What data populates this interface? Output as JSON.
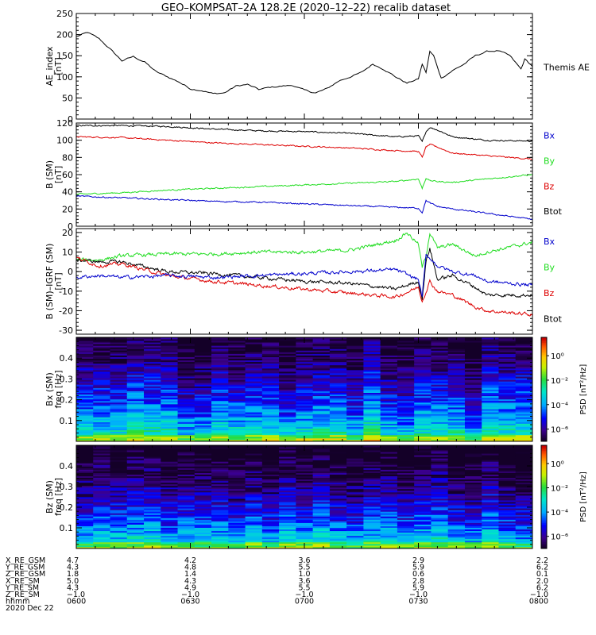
{
  "title": "GEO–KOMPSAT–2A 128.2E (2020–12–22) recalib dataset",
  "colors": {
    "black": "#000000",
    "red": "#dd0000",
    "green": "#22dd22",
    "blue": "#0000cc"
  },
  "chart_data": [
    {
      "type": "line",
      "id": "ae",
      "ylabel_lines": [
        "AE_index",
        "[nT]"
      ],
      "ylim": [
        0,
        250
      ],
      "yticks": [
        0,
        50,
        100,
        150,
        200,
        250
      ],
      "xlim_minutes": [
        0,
        120
      ],
      "legend": [
        {
          "label": "Themis AE",
          "color": "#000000"
        }
      ],
      "series": [
        {
          "name": "Themis AE",
          "color": "#000000",
          "x": [
            0,
            3,
            6,
            9,
            12,
            15,
            18,
            21,
            24,
            27,
            30,
            33,
            36,
            39,
            42,
            45,
            48,
            51,
            54,
            57,
            60,
            63,
            66,
            69,
            72,
            75,
            78,
            81,
            84,
            87,
            90,
            91,
            92,
            93,
            94,
            96,
            99,
            102,
            105,
            108,
            111,
            114,
            117,
            118,
            120
          ],
          "y": [
            195,
            205,
            190,
            165,
            138,
            148,
            135,
            112,
            100,
            88,
            72,
            68,
            60,
            62,
            78,
            82,
            70,
            75,
            78,
            80,
            68,
            62,
            72,
            90,
            100,
            110,
            130,
            118,
            100,
            85,
            95,
            130,
            110,
            160,
            150,
            97,
            115,
            130,
            150,
            160,
            162,
            150,
            118,
            142,
            125
          ]
        }
      ]
    },
    {
      "type": "line",
      "id": "b_sm",
      "ylabel_lines": [
        "B (SM)",
        "[nT]"
      ],
      "ylim": [
        0,
        120
      ],
      "yticks": [
        0,
        20,
        40,
        60,
        80,
        100,
        120
      ],
      "xlim_minutes": [
        0,
        120
      ],
      "legend": [
        {
          "label": "Bx",
          "color": "#0000cc"
        },
        {
          "label": "By",
          "color": "#22dd22"
        },
        {
          "label": "Bz",
          "color": "#dd0000"
        },
        {
          "label": "Btot",
          "color": "#000000"
        }
      ],
      "series": [
        {
          "name": "Btot",
          "color": "#000000",
          "x": [
            0,
            12,
            24,
            36,
            48,
            60,
            72,
            84,
            90,
            91,
            92,
            93,
            95,
            99,
            108,
            120
          ],
          "y": [
            117,
            117,
            116,
            113,
            111,
            110,
            108,
            104,
            105,
            98,
            110,
            115,
            112,
            104,
            100,
            99
          ]
        },
        {
          "name": "Bz",
          "color": "#dd0000",
          "x": [
            0,
            12,
            24,
            36,
            48,
            60,
            72,
            84,
            90,
            91,
            92,
            93,
            95,
            99,
            108,
            120
          ],
          "y": [
            104,
            103,
            100,
            97,
            95,
            93,
            91,
            88,
            87,
            80,
            92,
            95,
            92,
            85,
            82,
            78
          ]
        },
        {
          "name": "By",
          "color": "#22dd22",
          "x": [
            0,
            12,
            24,
            36,
            48,
            60,
            72,
            84,
            90,
            91,
            92,
            93,
            95,
            99,
            108,
            120
          ],
          "y": [
            37,
            39,
            42,
            44,
            46,
            48,
            50,
            52,
            55,
            44,
            56,
            53,
            52,
            51,
            55,
            60
          ]
        },
        {
          "name": "Bx",
          "color": "#0000cc",
          "x": [
            0,
            12,
            24,
            36,
            48,
            60,
            72,
            84,
            90,
            91,
            92,
            93,
            95,
            99,
            108,
            120
          ],
          "y": [
            35,
            33,
            31,
            29,
            28,
            26,
            24,
            22,
            21,
            16,
            30,
            27,
            23,
            20,
            15,
            8
          ]
        }
      ]
    },
    {
      "type": "line",
      "id": "b_igrf",
      "ylabel_lines": [
        "B (SM)–IGRF (SM)",
        "[nT]"
      ],
      "ylim": [
        -32,
        22
      ],
      "yticks": [
        -30,
        -20,
        -10,
        0,
        10,
        20
      ],
      "xlim_minutes": [
        0,
        120
      ],
      "legend": [
        {
          "label": "Bx",
          "color": "#0000cc"
        },
        {
          "label": "By",
          "color": "#22dd22"
        },
        {
          "label": "Bz",
          "color": "#dd0000"
        },
        {
          "label": "Btot",
          "color": "#000000"
        }
      ],
      "series": [
        {
          "name": "By",
          "color": "#22dd22",
          "x": [
            0,
            6,
            12,
            24,
            36,
            48,
            60,
            72,
            84,
            87,
            90,
            91,
            92,
            93,
            95,
            99,
            105,
            108,
            120
          ],
          "y": [
            6,
            6,
            8,
            9,
            9,
            10,
            10,
            11,
            16,
            20,
            14,
            2,
            8,
            20,
            12,
            14,
            8,
            10,
            15
          ]
        },
        {
          "name": "Btot",
          "color": "#000000",
          "x": [
            0,
            6,
            12,
            24,
            36,
            48,
            60,
            72,
            84,
            90,
            91,
            92,
            93,
            95,
            99,
            105,
            108,
            120
          ],
          "y": [
            6,
            5,
            5,
            0,
            -1,
            -3,
            -5,
            -6,
            -9,
            -5,
            -14,
            5,
            12,
            -4,
            -2,
            -8,
            -12,
            -12
          ]
        },
        {
          "name": "Bz",
          "color": "#dd0000",
          "x": [
            0,
            6,
            12,
            24,
            36,
            48,
            60,
            72,
            84,
            90,
            91,
            92,
            93,
            95,
            99,
            105,
            108,
            120
          ],
          "y": [
            7,
            3,
            4,
            -2,
            -5,
            -7,
            -9,
            -11,
            -13,
            -8,
            -15,
            -10,
            -5,
            -10,
            -12,
            -18,
            -20,
            -22
          ]
        },
        {
          "name": "Bx",
          "color": "#0000cc",
          "x": [
            0,
            6,
            12,
            24,
            36,
            48,
            60,
            72,
            84,
            90,
            91,
            92,
            93,
            95,
            99,
            105,
            108,
            120
          ],
          "y": [
            -3,
            -2,
            -3,
            -2,
            -3,
            -2,
            -1,
            0,
            1,
            -4,
            -13,
            8,
            7,
            3,
            0,
            -2,
            -5,
            -7
          ]
        }
      ]
    },
    {
      "type": "heatmap",
      "id": "bx_psd",
      "ylabel_lines": [
        "Bx (SM)",
        "freq [Hz]"
      ],
      "ylim": [
        0.0,
        0.5
      ],
      "yticks": [
        0.1,
        0.2,
        0.3,
        0.4
      ],
      "zlabel": "PSD [nT²/Hz]",
      "colorbar_ticks": [
        "10⁰",
        "10⁻²",
        "10⁻⁴",
        "10⁻⁶"
      ],
      "colorbar_exponents": [
        0,
        -2,
        -4,
        -6
      ],
      "zlim_exponent": [
        -7,
        1.5
      ],
      "time_bins": 27,
      "freq_bins": 64
    },
    {
      "type": "heatmap",
      "id": "bz_psd",
      "ylabel_lines": [
        "Bz (SM)",
        "freq [Hz]"
      ],
      "ylim": [
        0.0,
        0.5
      ],
      "yticks": [
        0.1,
        0.2,
        0.3,
        0.4
      ],
      "zlabel": "PSD [nT²/Hz]",
      "colorbar_ticks": [
        "10⁰",
        "10⁻²",
        "10⁻⁴",
        "10⁻⁶"
      ],
      "colorbar_exponents": [
        0,
        -2,
        -4,
        -6
      ],
      "zlim_exponent": [
        -7,
        1.5
      ],
      "time_bins": 27,
      "freq_bins": 64
    }
  ],
  "orbit_table": {
    "labels": [
      "X_RE_GSM",
      "Y_RE_GSM",
      "Z_RE_GSM",
      "X_RE_SM",
      "Y_RE_SM",
      "Z_RE_SM",
      "hhmm",
      "2020 Dec 22"
    ],
    "columns": [
      {
        "values": [
          "4.7",
          "4.3",
          "1.8",
          "5.0",
          "4.3",
          "−1.0",
          "0600"
        ]
      },
      {
        "values": [
          "4.2",
          "4.8",
          "1.4",
          "4.3",
          "4.9",
          "−1.0",
          "0630"
        ]
      },
      {
        "values": [
          "3.6",
          "5.5",
          "1.0",
          "3.6",
          "5.5",
          "−1.0",
          "0700"
        ]
      },
      {
        "values": [
          "2.9",
          "5.9",
          "0.6",
          "2.8",
          "5.9",
          "−1.0",
          "0730"
        ]
      },
      {
        "values": [
          "2.2",
          "6.2",
          "0.1",
          "2.0",
          "6.2",
          "−1.0",
          "0800"
        ]
      }
    ]
  }
}
